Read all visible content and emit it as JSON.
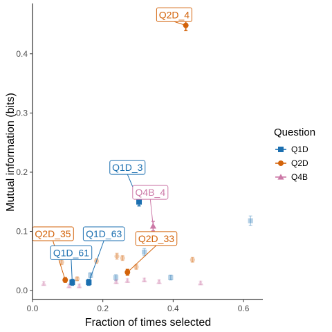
{
  "chart_data": {
    "type": "scatter",
    "xlabel": "Fraction of times selected",
    "ylabel": "Mutual information (bits)",
    "xlim": [
      0,
      0.655
    ],
    "ylim": [
      -0.015,
      0.485
    ],
    "x_ticks": [
      0.0,
      0.2,
      0.4,
      0.6
    ],
    "x_tick_labels": [
      "0.0",
      "0.2",
      "0.4",
      "0.6"
    ],
    "y_ticks": [
      0.0,
      0.1,
      0.2,
      0.3,
      0.4
    ],
    "y_tick_labels": [
      "0.0",
      "0.1",
      "0.2",
      "0.3",
      "0.4"
    ],
    "grid": false,
    "legend": {
      "title": "Question",
      "placement": "right"
    },
    "series": [
      {
        "name": "Q1D",
        "color": "#1b6fb0",
        "marker": "square",
        "points": [
          {
            "x": 0.113,
            "y": 0.014,
            "err": 0.005,
            "highlight": true
          },
          {
            "x": 0.16,
            "y": 0.014,
            "err": 0.005,
            "highlight": true
          },
          {
            "x": 0.303,
            "y": 0.15,
            "err": 0.007,
            "highlight": true
          },
          {
            "x": 0.165,
            "y": 0.026,
            "err": 0.004,
            "highlight": false
          },
          {
            "x": 0.237,
            "y": 0.022,
            "err": 0.005,
            "highlight": false
          },
          {
            "x": 0.318,
            "y": 0.065,
            "err": 0.006,
            "highlight": false
          },
          {
            "x": 0.393,
            "y": 0.022,
            "err": 0.004,
            "highlight": false
          },
          {
            "x": 0.62,
            "y": 0.118,
            "err": 0.008,
            "highlight": false
          }
        ]
      },
      {
        "name": "Q2D",
        "color": "#d3630a",
        "marker": "circle",
        "points": [
          {
            "x": 0.436,
            "y": 0.448,
            "err": 0.009,
            "highlight": true
          },
          {
            "x": 0.093,
            "y": 0.018,
            "err": 0.004,
            "highlight": true
          },
          {
            "x": 0.27,
            "y": 0.031,
            "err": 0.005,
            "highlight": true
          },
          {
            "x": 0.083,
            "y": 0.048,
            "err": 0.004,
            "highlight": false
          },
          {
            "x": 0.182,
            "y": 0.05,
            "err": 0.004,
            "highlight": false
          },
          {
            "x": 0.24,
            "y": 0.058,
            "err": 0.005,
            "highlight": false
          },
          {
            "x": 0.256,
            "y": 0.055,
            "err": 0.004,
            "highlight": false
          },
          {
            "x": 0.295,
            "y": 0.04,
            "err": 0.004,
            "highlight": false
          },
          {
            "x": 0.455,
            "y": 0.052,
            "err": 0.004,
            "highlight": false
          },
          {
            "x": 0.127,
            "y": 0.02,
            "err": 0.003,
            "highlight": false
          }
        ]
      },
      {
        "name": "Q4B",
        "color": "#cc79a7",
        "marker": "triangle",
        "points": [
          {
            "x": 0.343,
            "y": 0.109,
            "err": 0.008,
            "highlight": true
          },
          {
            "x": 0.032,
            "y": 0.012,
            "err": 0.003,
            "highlight": false
          },
          {
            "x": 0.104,
            "y": 0.008,
            "err": 0.003,
            "highlight": false
          },
          {
            "x": 0.133,
            "y": 0.008,
            "err": 0.003,
            "highlight": false
          },
          {
            "x": 0.238,
            "y": 0.015,
            "err": 0.003,
            "highlight": false
          },
          {
            "x": 0.27,
            "y": 0.017,
            "err": 0.003,
            "highlight": false
          },
          {
            "x": 0.318,
            "y": 0.018,
            "err": 0.003,
            "highlight": false
          },
          {
            "x": 0.36,
            "y": 0.015,
            "err": 0.003,
            "highlight": false
          },
          {
            "x": 0.478,
            "y": 0.013,
            "err": 0.003,
            "highlight": false
          }
        ]
      }
    ],
    "annotations": [
      {
        "text": "Q2D_4",
        "series": "Q2D",
        "x": 0.436,
        "y": 0.448,
        "label_x": 0.403,
        "label_y": 0.466
      },
      {
        "text": "Q1D_3",
        "series": "Q1D",
        "x": 0.303,
        "y": 0.15,
        "label_x": 0.27,
        "label_y": 0.208
      },
      {
        "text": "Q4B_4",
        "series": "Q4B",
        "x": 0.343,
        "y": 0.109,
        "label_x": 0.335,
        "label_y": 0.166
      },
      {
        "text": "Q2D_35",
        "series": "Q2D",
        "x": 0.093,
        "y": 0.018,
        "label_x": 0.058,
        "label_y": 0.096
      },
      {
        "text": "Q1D_63",
        "series": "Q1D",
        "x": 0.16,
        "y": 0.014,
        "label_x": 0.203,
        "label_y": 0.096
      },
      {
        "text": "Q1D_61",
        "series": "Q1D",
        "x": 0.113,
        "y": 0.014,
        "label_x": 0.11,
        "label_y": 0.064
      },
      {
        "text": "Q2D_33",
        "series": "Q2D",
        "x": 0.27,
        "y": 0.031,
        "label_x": 0.352,
        "label_y": 0.088
      }
    ]
  }
}
